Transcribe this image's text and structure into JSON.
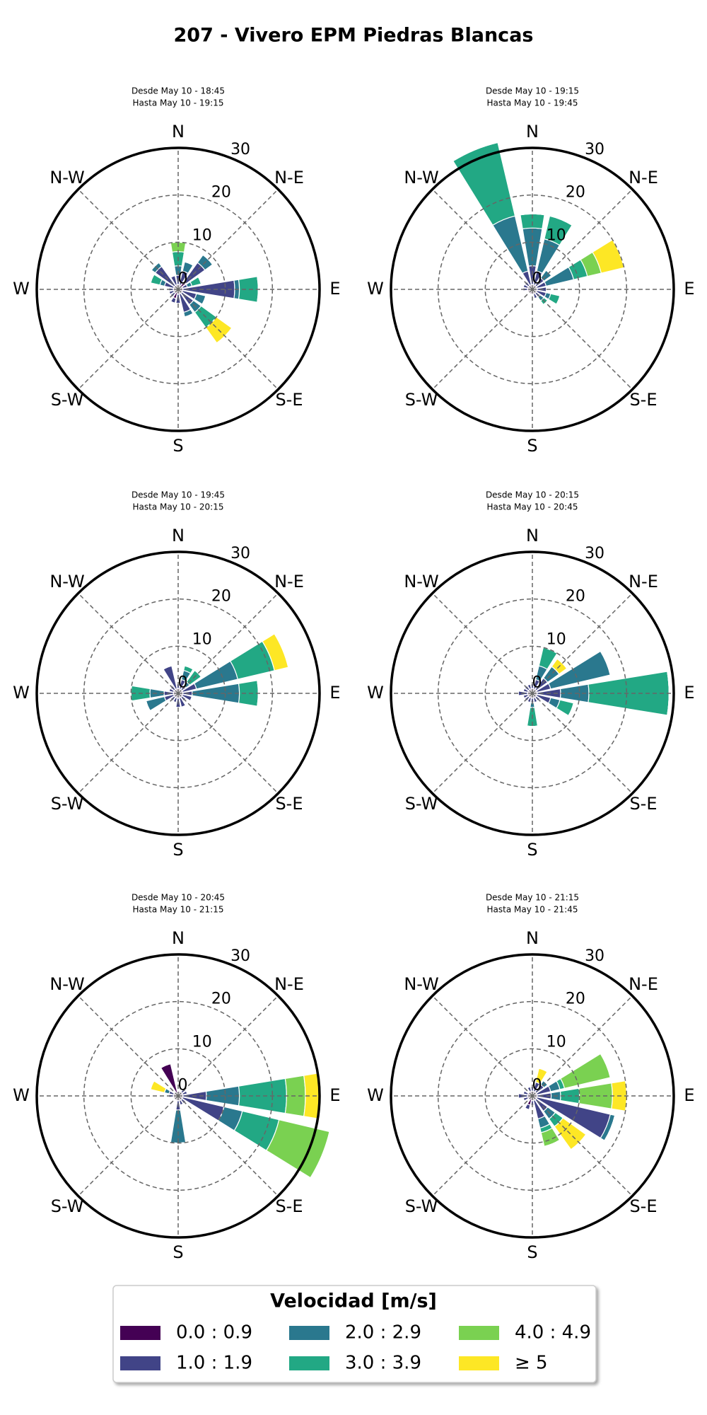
{
  "title": "207 - Vivero EPM Piedras Blancas",
  "legend_title": "Velocidad [m/s]",
  "chart_data": [
    {
      "type": "windrose",
      "title": [
        "Desde May 10 - 18:45",
        "Hasta May 10 - 19:15"
      ],
      "direction_labels": [
        "N",
        "N-E",
        "E",
        "S-E",
        "S",
        "S-W",
        "W",
        "N-W"
      ],
      "rlim": [
        0,
        30
      ],
      "rticks": [
        0,
        10,
        20,
        30
      ],
      "grid": true,
      "series": [
        {
          "name": "0.0 : 0.9",
          "color": "#440154",
          "values": [
            1,
            1,
            2,
            1,
            1,
            1,
            1,
            1,
            1,
            2,
            1,
            1,
            1,
            1,
            1,
            1
          ]
        },
        {
          "name": "1.0 : 1.9",
          "color": "#414487",
          "values": [
            2,
            3,
            5,
            1,
            11,
            3,
            3,
            4,
            2,
            1,
            1,
            1,
            1,
            2,
            5,
            2
          ]
        },
        {
          "name": "2.0 : 2.9",
          "color": "#2a788e",
          "values": [
            2,
            2,
            2,
            1,
            1,
            2,
            2,
            1,
            0,
            0,
            0,
            0,
            0,
            1,
            1,
            0
          ]
        },
        {
          "name": "3.0 : 3.9",
          "color": "#22a884",
          "values": [
            3,
            0,
            0,
            2,
            4,
            0,
            4,
            0,
            0,
            0,
            0,
            0,
            0,
            2,
            0,
            0
          ]
        },
        {
          "name": "4.0 : 4.9",
          "color": "#7ad151",
          "values": [
            2,
            0,
            0,
            0,
            0,
            0,
            0,
            0,
            0,
            0,
            0,
            0,
            0,
            0,
            0,
            0
          ]
        },
        {
          "name": "≥  5",
          "color": "#fde725",
          "values": [
            0,
            0,
            0,
            0,
            0,
            0,
            4,
            0,
            0,
            0,
            0,
            0,
            0,
            0,
            0,
            0
          ]
        }
      ]
    },
    {
      "type": "windrose",
      "title": [
        "Desde May 10 - 19:15",
        "Hasta May 10 - 19:45"
      ],
      "direction_labels": [
        "N",
        "N-E",
        "E",
        "S-E",
        "S",
        "S-W",
        "W",
        "N-W"
      ],
      "rlim": [
        0,
        30
      ],
      "rticks": [
        0,
        10,
        20,
        30
      ],
      "grid": true,
      "series": [
        {
          "name": "0.0 : 0.9",
          "color": "#440154",
          "values": [
            1,
            1,
            1,
            1,
            1,
            1,
            1,
            1,
            1,
            1,
            1,
            1,
            1,
            1,
            1,
            1
          ]
        },
        {
          "name": "1.0 : 1.9",
          "color": "#414487",
          "values": [
            4,
            3,
            2,
            2,
            2,
            2,
            1,
            1,
            0,
            0,
            0,
            0,
            1,
            1,
            1,
            3
          ]
        },
        {
          "name": "2.0 : 2.9",
          "color": "#2a788e",
          "values": [
            8,
            7,
            2,
            6,
            0,
            1,
            1,
            0,
            0,
            0,
            0,
            0,
            0,
            0,
            0,
            12
          ]
        },
        {
          "name": "3.0 : 3.9",
          "color": "#22a884",
          "values": [
            3,
            5,
            0,
            3,
            0,
            2,
            1,
            0,
            0,
            0,
            0,
            0,
            0,
            0,
            0,
            16
          ]
        },
        {
          "name": "4.0 : 4.9",
          "color": "#7ad151",
          "values": [
            0,
            0,
            0,
            3,
            0,
            0,
            0,
            0,
            0,
            0,
            0,
            0,
            0,
            0,
            0,
            0
          ]
        },
        {
          "name": "≥  5",
          "color": "#fde725",
          "values": [
            0,
            0,
            0,
            5,
            0,
            0,
            0,
            0,
            0,
            0,
            0,
            0,
            0,
            0,
            0,
            0
          ]
        }
      ]
    },
    {
      "type": "windrose",
      "title": [
        "Desde May 10 - 19:45",
        "Hasta May 10 - 20:15"
      ],
      "direction_labels": [
        "N",
        "N-E",
        "E",
        "S-E",
        "S",
        "S-W",
        "W",
        "N-W"
      ],
      "rlim": [
        0,
        30
      ],
      "rticks": [
        0,
        10,
        20,
        30
      ],
      "grid": true,
      "series": [
        {
          "name": "0.0 : 0.9",
          "color": "#440154",
          "values": [
            1,
            1,
            1,
            1,
            1,
            1,
            1,
            1,
            1,
            1,
            1,
            1,
            1,
            1,
            1,
            1
          ]
        },
        {
          "name": "1.0 : 1.9",
          "color": "#414487",
          "values": [
            1,
            2,
            1,
            3,
            2,
            2,
            1,
            2,
            2,
            1,
            1,
            2,
            2,
            1,
            1,
            5
          ]
        },
        {
          "name": "2.0 : 2.9",
          "color": "#2a788e",
          "values": [
            0,
            2,
            1,
            9,
            10,
            0,
            0,
            0,
            0,
            0,
            0,
            4,
            3,
            0,
            0,
            0
          ]
        },
        {
          "name": "3.0 : 3.9",
          "color": "#22a884",
          "values": [
            0,
            1,
            3,
            8,
            4,
            0,
            0,
            0,
            0,
            0,
            0,
            0,
            4,
            0,
            0,
            0
          ]
        },
        {
          "name": "4.0 : 4.9",
          "color": "#7ad151",
          "values": [
            0,
            0,
            0,
            0,
            0,
            0,
            0,
            0,
            0,
            0,
            0,
            0,
            0,
            0,
            0,
            0
          ]
        },
        {
          "name": "≥  5",
          "color": "#fde725",
          "values": [
            0,
            0,
            0,
            3,
            0,
            0,
            0,
            0,
            0,
            0,
            0,
            0,
            0,
            0,
            0,
            0
          ]
        }
      ]
    },
    {
      "type": "windrose",
      "title": [
        "Desde May 10 - 20:15",
        "Hasta May 10 - 20:45"
      ],
      "direction_labels": [
        "N",
        "N-E",
        "E",
        "S-E",
        "S",
        "S-W",
        "W",
        "N-W"
      ],
      "rlim": [
        0,
        30
      ],
      "rticks": [
        0,
        10,
        20,
        30
      ],
      "grid": true,
      "series": [
        {
          "name": "0.0 : 0.9",
          "color": "#440154",
          "values": [
            1,
            1,
            1,
            1,
            1,
            1,
            1,
            1,
            1,
            1,
            1,
            1,
            1,
            1,
            1,
            1
          ]
        },
        {
          "name": "1.0 : 1.9",
          "color": "#414487",
          "values": [
            1,
            2,
            3,
            3,
            5,
            3,
            1,
            1,
            1,
            1,
            1,
            1,
            2,
            1,
            1,
            1
          ]
        },
        {
          "name": "2.0 : 2.9",
          "color": "#2a788e",
          "values": [
            0,
            3,
            3,
            13,
            6,
            2,
            0,
            0,
            1,
            0,
            0,
            0,
            0,
            0,
            0,
            0
          ]
        },
        {
          "name": "3.0 : 3.9",
          "color": "#22a884",
          "values": [
            0,
            4,
            0,
            0,
            17,
            3,
            0,
            0,
            4,
            0,
            0,
            0,
            0,
            0,
            0,
            0
          ]
        },
        {
          "name": "4.0 : 4.9",
          "color": "#7ad151",
          "values": [
            0,
            0,
            0,
            0,
            0,
            0,
            0,
            0,
            0,
            0,
            0,
            0,
            0,
            0,
            0,
            0
          ]
        },
        {
          "name": "≥  5",
          "color": "#fde725",
          "values": [
            0,
            0,
            2,
            0,
            0,
            0,
            0,
            0,
            0,
            0,
            0,
            0,
            0,
            0,
            0,
            0
          ]
        }
      ]
    },
    {
      "type": "windrose",
      "title": [
        "Desde May 10 - 20:45",
        "Hasta May 10 - 21:15"
      ],
      "direction_labels": [
        "N",
        "N-E",
        "E",
        "S-E",
        "S",
        "S-W",
        "W",
        "N-W"
      ],
      "rlim": [
        0,
        30
      ],
      "rticks": [
        0,
        10,
        20,
        30
      ],
      "grid": true,
      "series": [
        {
          "name": "0.0 : 0.9",
          "color": "#440154",
          "values": [
            1,
            1,
            1,
            1,
            1,
            1,
            1,
            1,
            1,
            1,
            1,
            1,
            1,
            1,
            1,
            7
          ]
        },
        {
          "name": "1.0 : 1.9",
          "color": "#414487",
          "values": [
            0,
            0,
            1,
            1,
            5,
            9,
            1,
            1,
            2,
            0,
            0,
            0,
            1,
            1,
            0,
            0
          ]
        },
        {
          "name": "2.0 : 2.9",
          "color": "#2a788e",
          "values": [
            0,
            0,
            0,
            0,
            7,
            4,
            0,
            0,
            7,
            0,
            0,
            0,
            0,
            1,
            0,
            0
          ]
        },
        {
          "name": "3.0 : 3.9",
          "color": "#22a884",
          "values": [
            0,
            0,
            0,
            0,
            10,
            8,
            0,
            0,
            0,
            0,
            0,
            0,
            0,
            0,
            0,
            0
          ]
        },
        {
          "name": "4.0 : 4.9",
          "color": "#7ad151",
          "values": [
            0,
            0,
            0,
            0,
            4,
            11,
            0,
            0,
            0,
            0,
            0,
            0,
            0,
            0,
            0,
            0
          ]
        },
        {
          "name": "≥  5",
          "color": "#fde725",
          "values": [
            0,
            0,
            0,
            0,
            3,
            0,
            0,
            0,
            0,
            0,
            0,
            0,
            0,
            3,
            0,
            0
          ]
        }
      ]
    },
    {
      "type": "windrose",
      "title": [
        "Desde May 10 - 21:15",
        "Hasta May 10 - 21:45"
      ],
      "direction_labels": [
        "N",
        "N-E",
        "E",
        "S-E",
        "S",
        "S-W",
        "W",
        "N-W"
      ],
      "rlim": [
        0,
        30
      ],
      "rticks": [
        0,
        10,
        20,
        30
      ],
      "grid": true,
      "series": [
        {
          "name": "0.0 : 0.9",
          "color": "#440154",
          "values": [
            1,
            1,
            1,
            1,
            1,
            1,
            1,
            1,
            1,
            2,
            1,
            1,
            1,
            1,
            1,
            1
          ]
        },
        {
          "name": "1.0 : 1.9",
          "color": "#414487",
          "values": [
            1,
            2,
            2,
            3,
            3,
            16,
            3,
            4,
            1,
            1,
            0,
            1,
            2,
            1,
            0,
            1
          ]
        },
        {
          "name": "2.0 : 2.9",
          "color": "#2a788e",
          "values": [
            0,
            0,
            1,
            2,
            2,
            1,
            2,
            2,
            0,
            0,
            0,
            0,
            0,
            0,
            0,
            0
          ]
        },
        {
          "name": "3.0 : 3.9",
          "color": "#22a884",
          "values": [
            0,
            0,
            0,
            1,
            4,
            0,
            2,
            1,
            0,
            0,
            0,
            0,
            0,
            0,
            0,
            0
          ]
        },
        {
          "name": "4.0 : 4.9",
          "color": "#7ad151",
          "values": [
            0,
            0,
            0,
            10,
            7,
            0,
            0,
            3,
            0,
            0,
            0,
            0,
            0,
            0,
            0,
            0
          ]
        },
        {
          "name": "≥  5",
          "color": "#fde725",
          "values": [
            0,
            3,
            0,
            0,
            3,
            0,
            6,
            0,
            0,
            0,
            0,
            0,
            0,
            0,
            0,
            0
          ]
        }
      ]
    }
  ]
}
